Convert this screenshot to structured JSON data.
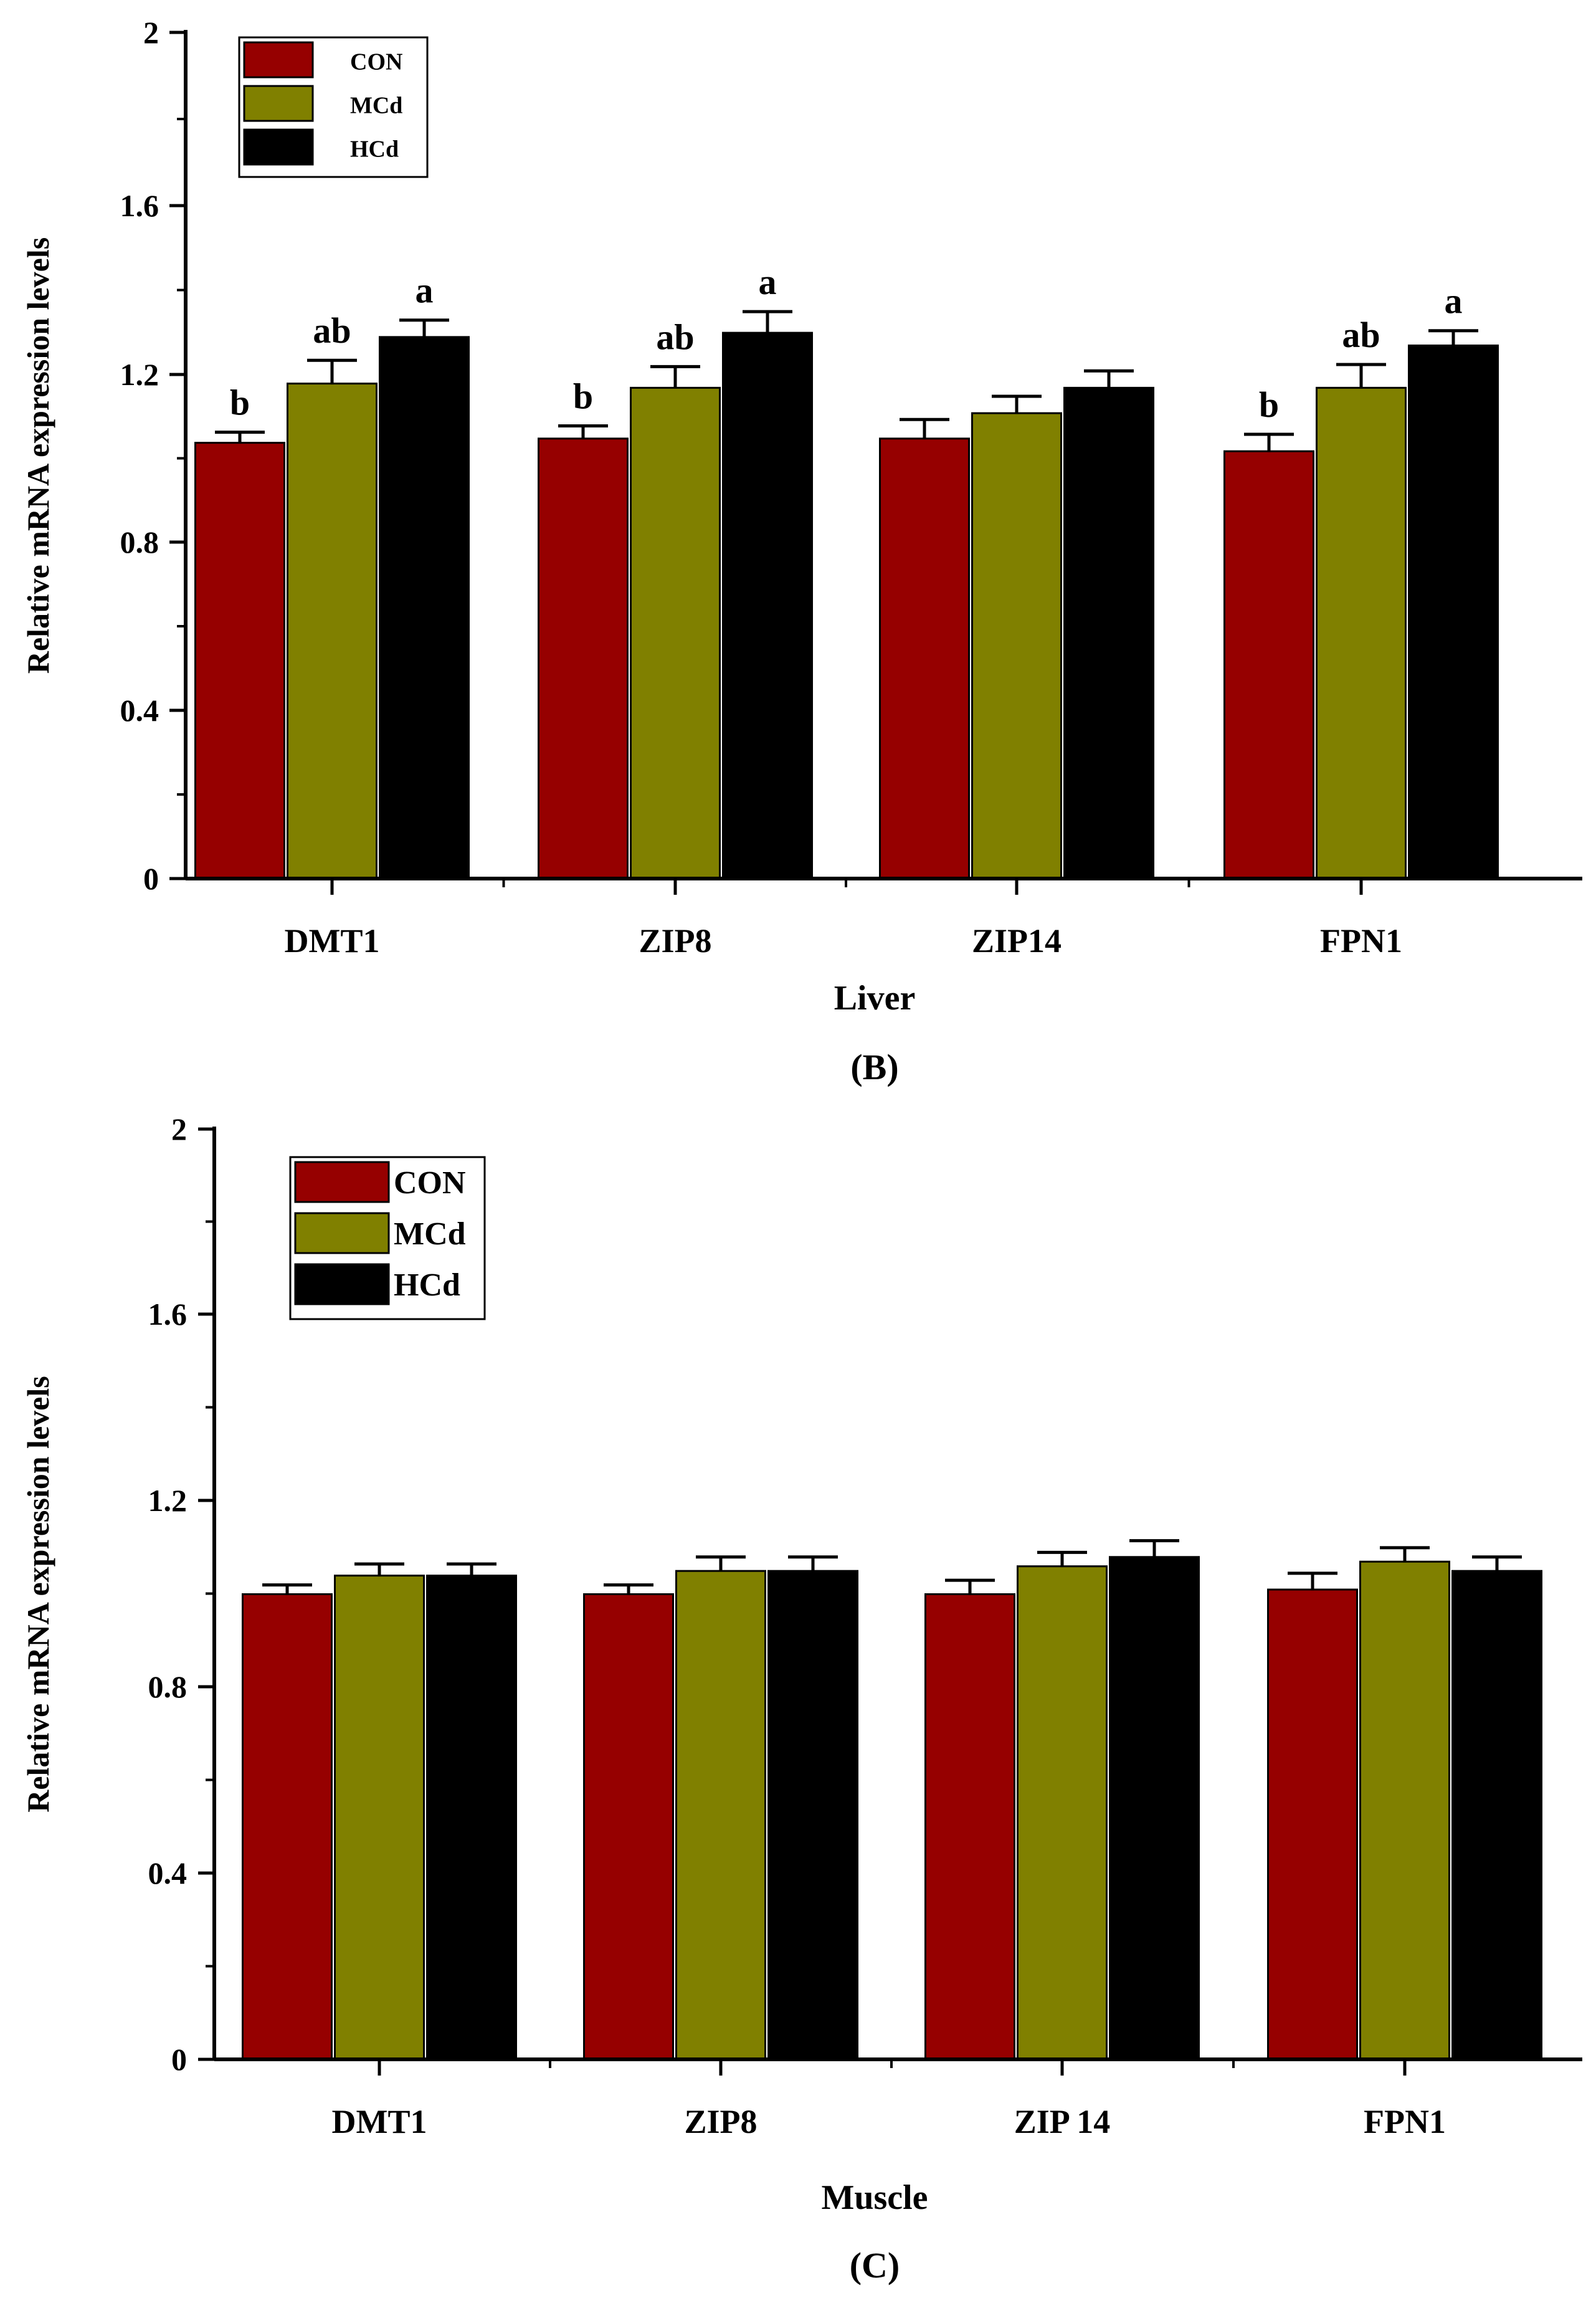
{
  "figure": {
    "panels": [
      "B",
      "C"
    ]
  },
  "chart_data": [
    {
      "type": "bar",
      "panel_label": "(B)",
      "title": "",
      "xlabel": "Liver",
      "ylabel": "Relative mRNA expression levels",
      "ylim": [
        0,
        2
      ],
      "yticks": [
        "0",
        "0.4",
        "0.8",
        "1.2",
        "1.6",
        "2"
      ],
      "categories": [
        "DMT1",
        "ZIP8",
        "ZIP14",
        "FPN1"
      ],
      "legend_position": "top-left",
      "series": [
        {
          "name": "CON",
          "color": "#960000",
          "values": [
            1.03,
            1.04,
            1.04,
            1.01
          ],
          "errors": [
            0.025,
            0.03,
            0.045,
            0.04
          ],
          "sig": [
            "b",
            "b",
            "",
            "b"
          ]
        },
        {
          "name": "MCd",
          "color": "#808000",
          "values": [
            1.17,
            1.16,
            1.1,
            1.16
          ],
          "errors": [
            0.055,
            0.05,
            0.04,
            0.055
          ],
          "sig": [
            "ab",
            "ab",
            "",
            "ab"
          ]
        },
        {
          "name": "HCd",
          "color": "#000000",
          "values": [
            1.28,
            1.29,
            1.16,
            1.26
          ],
          "errors": [
            0.04,
            0.05,
            0.04,
            0.035
          ],
          "sig": [
            "a",
            "a",
            "",
            "a"
          ]
        }
      ]
    },
    {
      "type": "bar",
      "panel_label": "(C)",
      "title": "",
      "xlabel": "Muscle",
      "ylabel": "Relative mRNA expression levels",
      "ylim": [
        0,
        2
      ],
      "yticks": [
        "0",
        "0.4",
        "0.8",
        "1.2",
        "1.6",
        "2"
      ],
      "categories": [
        "DMT1",
        "ZIP8",
        "ZIP 14",
        "FPN1"
      ],
      "legend_position": "top-left",
      "series": [
        {
          "name": "CON",
          "color": "#960000",
          "values": [
            1.0,
            1.0,
            1.0,
            1.01
          ],
          "errors": [
            0.02,
            0.02,
            0.03,
            0.035
          ],
          "sig": [
            "",
            "",
            "",
            ""
          ]
        },
        {
          "name": "MCd",
          "color": "#808000",
          "values": [
            1.04,
            1.05,
            1.06,
            1.07
          ],
          "errors": [
            0.025,
            0.03,
            0.03,
            0.03
          ],
          "sig": [
            "",
            "",
            "",
            ""
          ]
        },
        {
          "name": "HCd",
          "color": "#000000",
          "values": [
            1.04,
            1.05,
            1.08,
            1.05
          ],
          "errors": [
            0.025,
            0.03,
            0.035,
            0.03
          ],
          "sig": [
            "",
            "",
            "",
            ""
          ]
        }
      ]
    }
  ]
}
